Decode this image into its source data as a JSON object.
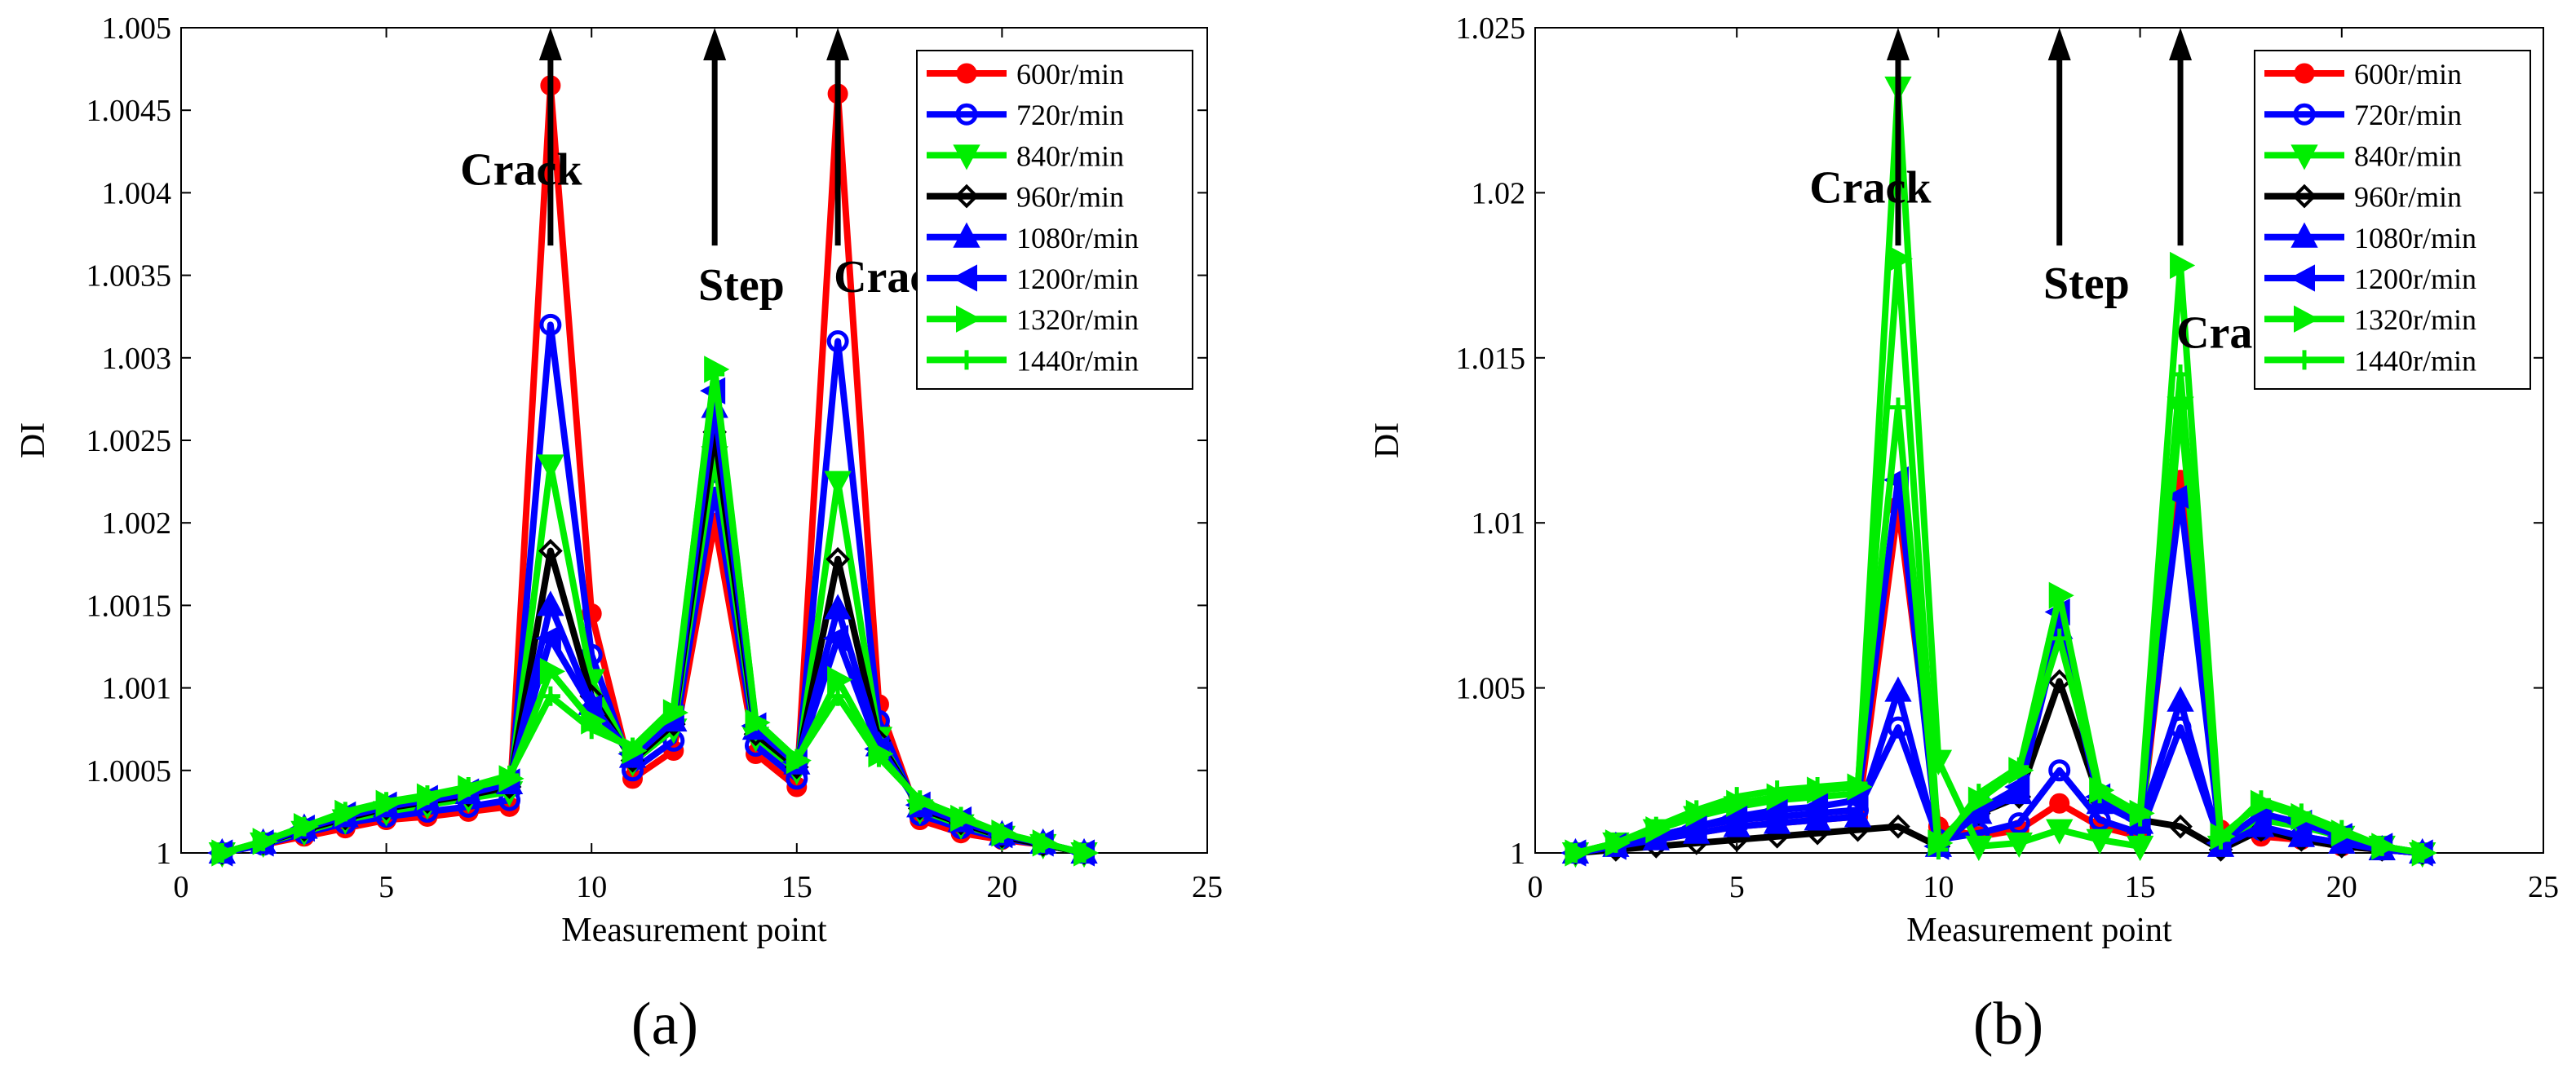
{
  "chart_data": [
    {
      "panel_label": "(a)",
      "type": "line",
      "xlabel": "Measurement point",
      "ylabel": "DI",
      "xlim": [
        0,
        25
      ],
      "ylim": [
        1,
        1.005
      ],
      "xticks": [
        0,
        5,
        10,
        15,
        20,
        25
      ],
      "xtick_labels": [
        "0",
        "5",
        "10",
        "15",
        "20",
        "25"
      ],
      "yticks": [
        1,
        1.0005,
        1.001,
        1.0015,
        1.002,
        1.0025,
        1.003,
        1.0035,
        1.004,
        1.0045,
        1.005
      ],
      "ytick_labels": [
        "1",
        "1.0005",
        "1.001",
        "1.0015",
        "1.002",
        "1.0025",
        "1.003",
        "1.0035",
        "1.004",
        "1.0045",
        "1.005"
      ],
      "legend_position": "top-right",
      "grid": false,
      "annotations": [
        {
          "text": "Crack",
          "x": 6.8,
          "y": 1.00405,
          "arrow_x": 9,
          "arrow_y0": 1.00368,
          "arrow_y1": 1.005
        },
        {
          "text": "Step",
          "x": 12.6,
          "y": 1.00335,
          "arrow_x": 13,
          "arrow_y0": 1.00368,
          "arrow_y1": 1.005
        },
        {
          "text": "Crack",
          "x": 15.9,
          "y": 1.0034,
          "arrow_x": 16,
          "arrow_y0": 1.00368,
          "arrow_y1": 1.005
        }
      ],
      "x": [
        1,
        2,
        3,
        4,
        5,
        6,
        7,
        8,
        9,
        10,
        11,
        12,
        13,
        14,
        15,
        16,
        17,
        18,
        19,
        20,
        21,
        22
      ],
      "series": [
        {
          "name": "600r/min",
          "color": "#ff0000",
          "marker": "circle-filled",
          "values": [
            1.0,
            1.00005,
            1.0001,
            1.00015,
            1.0002,
            1.00022,
            1.00025,
            1.00028,
            1.00465,
            1.00145,
            1.00045,
            1.00062,
            1.002,
            1.0006,
            1.0004,
            1.0046,
            1.0009,
            1.0002,
            1.00012,
            1.00008,
            1.00005,
            1.0
          ]
        },
        {
          "name": "720r/min",
          "color": "#0000ff",
          "marker": "circle-open",
          "values": [
            1.0,
            1.00005,
            1.00012,
            1.00018,
            1.00022,
            1.00025,
            1.00028,
            1.00032,
            1.0032,
            1.0012,
            1.0005,
            1.00068,
            1.0022,
            1.00065,
            1.00045,
            1.0031,
            1.0008,
            1.00023,
            1.00015,
            1.00009,
            1.00005,
            1.0
          ]
        },
        {
          "name": "840r/min",
          "color": "#00ee00",
          "marker": "triangle-down",
          "values": [
            1.0,
            1.00006,
            1.00013,
            1.0002,
            1.00025,
            1.00029,
            1.00033,
            1.00037,
            1.00235,
            1.00105,
            1.00055,
            1.00075,
            1.0024,
            1.0007,
            1.0005,
            1.00225,
            1.0007,
            1.00026,
            1.00017,
            1.0001,
            1.00005,
            1.0
          ]
        },
        {
          "name": "960r/min",
          "color": "#000000",
          "marker": "diamond-open",
          "values": [
            1.0,
            1.00006,
            1.00014,
            1.00021,
            1.00027,
            1.00031,
            1.00035,
            1.0004,
            1.00183,
            1.00095,
            1.00056,
            1.00078,
            1.00255,
            1.00072,
            1.00052,
            1.00178,
            1.00068,
            1.00027,
            1.00018,
            1.0001,
            1.00005,
            1.0
          ]
        },
        {
          "name": "1080r/min",
          "color": "#0000ff",
          "marker": "triangle-up",
          "values": [
            1.0,
            1.00006,
            1.00015,
            1.00022,
            1.00028,
            1.00032,
            1.00036,
            1.00042,
            1.0015,
            1.0009,
            1.00058,
            1.0008,
            1.0027,
            1.00075,
            1.00054,
            1.00148,
            1.00065,
            1.00028,
            1.00019,
            1.00011,
            1.00006,
            1.0
          ]
        },
        {
          "name": "1200r/min",
          "color": "#0000ff",
          "marker": "triangle-left",
          "values": [
            1.0,
            1.00006,
            1.00015,
            1.00023,
            1.00029,
            1.00033,
            1.00037,
            1.00043,
            1.0013,
            1.00088,
            1.0006,
            1.00082,
            1.0028,
            1.00077,
            1.00055,
            1.0013,
            1.00063,
            1.00029,
            1.0002,
            1.00011,
            1.00006,
            1.0
          ]
        },
        {
          "name": "1320r/min",
          "color": "#00ee00",
          "marker": "triangle-right",
          "values": [
            1.0,
            1.00007,
            1.00016,
            1.00024,
            1.0003,
            1.00034,
            1.00039,
            1.00045,
            1.0011,
            1.0008,
            1.00062,
            1.00085,
            1.00293,
            1.00079,
            1.00056,
            1.00105,
            1.0006,
            1.00031,
            1.00021,
            1.00012,
            1.00006,
            1.0
          ]
        },
        {
          "name": "1440r/min",
          "color": "#00ee00",
          "marker": "plus",
          "values": [
            1.0,
            1.00007,
            1.00016,
            1.00025,
            1.00031,
            1.00035,
            1.0004,
            1.00047,
            1.00095,
            1.00075,
            1.00064,
            1.00088,
            1.0029,
            1.0008,
            1.00057,
            1.00095,
            1.00058,
            1.00032,
            1.00022,
            1.00012,
            1.00006,
            1.0
          ]
        }
      ]
    },
    {
      "panel_label": "(b)",
      "type": "line",
      "xlabel": "Measurement point",
      "ylabel": "DI",
      "xlim": [
        0,
        25
      ],
      "ylim": [
        1,
        1.025
      ],
      "xticks": [
        0,
        5,
        10,
        15,
        20,
        25
      ],
      "xtick_labels": [
        "0",
        "5",
        "10",
        "15",
        "20",
        "25"
      ],
      "yticks": [
        1,
        1.005,
        1.01,
        1.015,
        1.02,
        1.025
      ],
      "ytick_labels": [
        "1",
        "1.005",
        "1.01",
        "1.015",
        "1.02",
        "1.025"
      ],
      "legend_position": "top-right",
      "grid": false,
      "annotations": [
        {
          "text": "Crack",
          "x": 6.8,
          "y": 1.0197,
          "arrow_x": 9,
          "arrow_y0": 1.0184,
          "arrow_y1": 1.025
        },
        {
          "text": "Step",
          "x": 12.6,
          "y": 1.0168,
          "arrow_x": 13,
          "arrow_y0": 1.0184,
          "arrow_y1": 1.025
        },
        {
          "text": "Crack",
          "x": 15.9,
          "y": 1.0153,
          "arrow_x": 16,
          "arrow_y0": 1.0184,
          "arrow_y1": 1.025
        }
      ],
      "x": [
        1,
        2,
        3,
        4,
        5,
        6,
        7,
        8,
        9,
        10,
        11,
        12,
        13,
        14,
        15,
        16,
        17,
        18,
        19,
        20,
        21,
        22
      ],
      "series": [
        {
          "name": "600r/min",
          "color": "#ff0000",
          "marker": "circle-filled",
          "values": [
            1.0,
            1.0002,
            1.0004,
            1.0006,
            1.0008,
            1.0009,
            1.001,
            1.0011,
            1.0105,
            1.0008,
            1.0005,
            1.0007,
            1.0015,
            1.0008,
            1.0005,
            1.0113,
            1.0007,
            1.0005,
            1.0004,
            1.0002,
            1.0001,
            1.0
          ]
        },
        {
          "name": "720r/min",
          "color": "#0000ff",
          "marker": "circle-open",
          "values": [
            1.0,
            1.0002,
            1.0005,
            1.0008,
            1.001,
            1.0011,
            1.0012,
            1.0013,
            1.0038,
            1.0004,
            1.0006,
            1.0009,
            1.0025,
            1.001,
            1.0006,
            1.0038,
            1.0003,
            1.0007,
            1.0005,
            1.0003,
            1.0001,
            1.0
          ]
        },
        {
          "name": "840r/min",
          "color": "#00ee00",
          "marker": "triangle-down",
          "values": [
            1.0,
            1.0003,
            1.0007,
            1.0011,
            1.0014,
            1.0016,
            1.0017,
            1.0018,
            1.0232,
            1.0028,
            1.0002,
            1.0003,
            1.0007,
            1.0004,
            1.0002,
            1.0135,
            1.0002,
            1.001,
            1.0008,
            1.0005,
            1.0002,
            1.0
          ]
        },
        {
          "name": "960r/min",
          "color": "#000000",
          "marker": "diamond-open",
          "values": [
            1.0,
            1.0001,
            1.0002,
            1.0003,
            1.0004,
            1.0005,
            1.0006,
            1.0007,
            1.0008,
            1.0002,
            1.0012,
            1.0017,
            1.0052,
            1.0016,
            1.001,
            1.0008,
            1.0001,
            1.0007,
            1.0004,
            1.0002,
            1.0001,
            1.0
          ]
        },
        {
          "name": "1080r/min",
          "color": "#0000ff",
          "marker": "triangle-up",
          "values": [
            1.0,
            1.0002,
            1.0004,
            1.0006,
            1.0008,
            1.0009,
            1.001,
            1.0011,
            1.0049,
            1.0002,
            1.0012,
            1.0018,
            1.0068,
            1.0015,
            1.0009,
            1.0046,
            1.0002,
            1.0008,
            1.0005,
            1.0003,
            1.0001,
            1.0
          ]
        },
        {
          "name": "1200r/min",
          "color": "#0000ff",
          "marker": "triangle-left",
          "values": [
            1.0,
            1.0002,
            1.0005,
            1.0008,
            1.0011,
            1.0013,
            1.0014,
            1.0016,
            1.0113,
            1.0002,
            1.0013,
            1.002,
            1.0073,
            1.0017,
            1.001,
            1.0108,
            1.0003,
            1.0012,
            1.0009,
            1.0005,
            1.0002,
            1.0
          ]
        },
        {
          "name": "1320r/min",
          "color": "#00ee00",
          "marker": "triangle-right",
          "values": [
            1.0,
            1.0003,
            1.0007,
            1.0012,
            1.0015,
            1.0017,
            1.0019,
            1.002,
            1.018,
            1.0003,
            1.0016,
            1.0025,
            1.0078,
            1.0019,
            1.0012,
            1.0178,
            1.0005,
            1.0015,
            1.0011,
            1.0006,
            1.0002,
            1.0
          ]
        },
        {
          "name": "1440r/min",
          "color": "#00ee00",
          "marker": "plus",
          "values": [
            1.0,
            1.0003,
            1.0008,
            1.0013,
            1.0017,
            1.0019,
            1.002,
            1.0021,
            1.0135,
            1.0001,
            1.0018,
            1.0026,
            1.0065,
            1.0018,
            1.0011,
            1.0145,
            1.0004,
            1.0016,
            1.0012,
            1.0007,
            1.0002,
            1.0
          ]
        }
      ]
    }
  ]
}
